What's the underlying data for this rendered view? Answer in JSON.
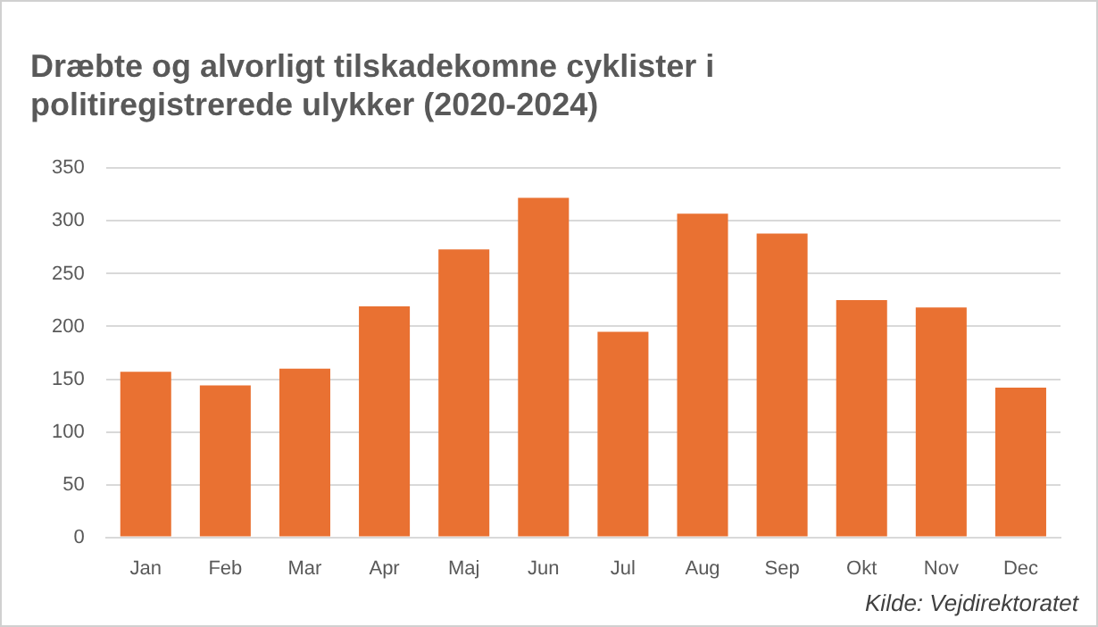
{
  "chart_data": {
    "type": "bar",
    "title": [
      "Dræbte og alvorligt tilskadekomne cyklister i",
      "politiregistrerede ulykker (2020-2024)"
    ],
    "categories": [
      "Jan",
      "Feb",
      "Mar",
      "Apr",
      "Maj",
      "Jun",
      "Jul",
      "Aug",
      "Sep",
      "Okt",
      "Nov",
      "Dec"
    ],
    "values": [
      157,
      144,
      160,
      219,
      273,
      322,
      195,
      307,
      288,
      225,
      218,
      142
    ],
    "color": "#e97132",
    "ylim": [
      0,
      350
    ],
    "yticks": [
      0,
      50,
      100,
      150,
      200,
      250,
      300,
      350
    ],
    "grid": "y",
    "legend": false,
    "annotations": [
      "Kilde: Vejdirektoratet"
    ]
  }
}
